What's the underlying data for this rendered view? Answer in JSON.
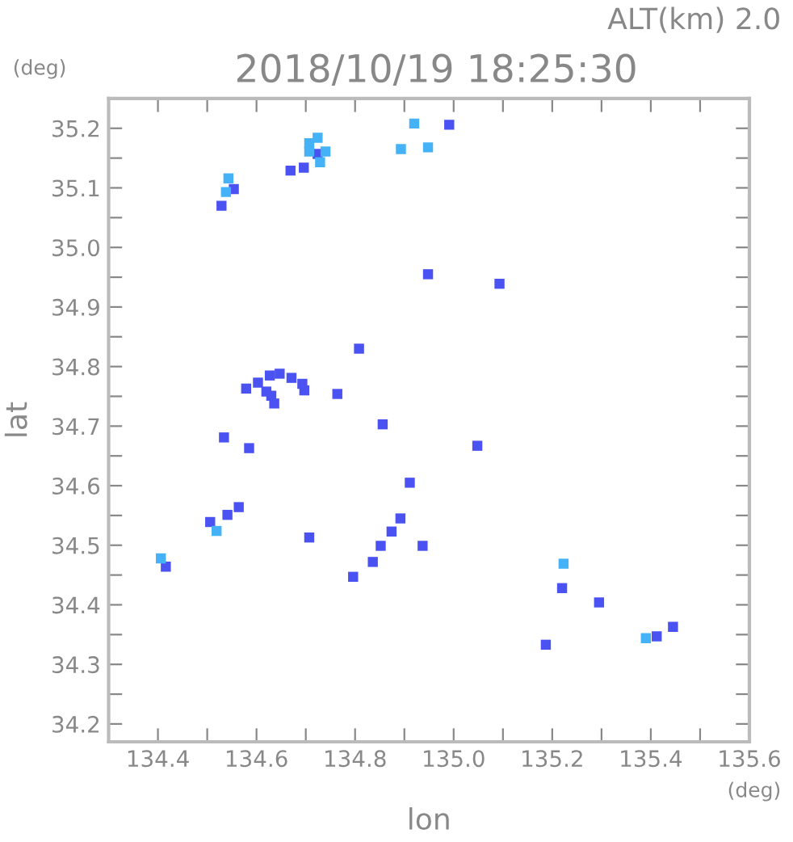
{
  "chart_data": {
    "type": "scatter",
    "title": "2018/10/19 18:25:30",
    "subtitle": "ALT(km) 2.0",
    "xlabel": "lon",
    "ylabel": "lat",
    "annotations": [
      "(deg)",
      "(deg)"
    ],
    "marker": "square",
    "grid": false,
    "legend": false,
    "xlim": [
      134.3,
      135.6
    ],
    "ylim": [
      34.17,
      35.25
    ],
    "xticks": [
      134.4,
      {
        "value": 134.5,
        "label": null
      },
      134.6,
      {
        "value": 134.7,
        "label": null
      },
      134.8,
      {
        "value": 134.9,
        "label": null
      },
      {
        "value": 135.0,
        "label": "135.0"
      },
      {
        "value": 135.1,
        "label": null
      },
      135.2,
      {
        "value": 135.3,
        "label": null
      },
      135.4,
      {
        "value": 135.5,
        "label": null
      },
      135.6
    ],
    "yticks": [
      34.2,
      {
        "value": 34.25,
        "label": null
      },
      34.3,
      {
        "value": 34.35,
        "label": null
      },
      34.4,
      {
        "value": 34.45,
        "label": null
      },
      34.5,
      {
        "value": 34.55,
        "label": null
      },
      34.6,
      {
        "value": 34.65,
        "label": null
      },
      34.7,
      {
        "value": 34.75,
        "label": null
      },
      34.8,
      {
        "value": 34.85,
        "label": null
      },
      34.9,
      {
        "value": 34.95,
        "label": null
      },
      {
        "value": 35.0,
        "label": "35.0"
      },
      {
        "value": 35.05,
        "label": null
      },
      35.1,
      {
        "value": 35.15,
        "label": null
      },
      35.2
    ],
    "series": [
      {
        "color": "#4b52f2",
        "x": [
          134.529,
          134.554,
          134.669,
          134.696,
          134.724,
          134.991,
          134.948,
          135.093,
          134.808,
          134.579,
          134.603,
          134.627,
          134.647,
          134.671,
          134.693,
          134.697,
          134.62,
          134.63,
          134.764,
          134.636,
          134.534,
          134.585,
          134.416,
          134.506,
          134.564,
          134.541,
          134.707,
          134.856,
          135.048,
          134.911,
          134.892,
          134.874,
          134.852,
          134.836,
          134.796,
          134.937,
          135.22,
          135.295,
          135.187,
          135.412,
          135.445
        ],
        "values": [
          35.07,
          35.098,
          35.129,
          35.134,
          35.157,
          35.206,
          34.955,
          34.939,
          34.83,
          34.763,
          34.773,
          34.785,
          34.788,
          34.781,
          34.771,
          34.76,
          34.758,
          34.751,
          34.754,
          34.738,
          34.681,
          34.663,
          34.464,
          34.539,
          34.564,
          34.551,
          34.513,
          34.703,
          34.667,
          34.605,
          34.545,
          34.523,
          34.499,
          34.472,
          34.447,
          34.499,
          34.428,
          34.404,
          34.333,
          34.347,
          34.363
        ]
      },
      {
        "color": "#45b2f7",
        "x": [
          134.538,
          134.543,
          134.707,
          134.724,
          134.707,
          134.74,
          134.729,
          134.92,
          134.893,
          134.948,
          135.223,
          135.39,
          134.406,
          134.519
        ],
        "values": [
          35.093,
          35.116,
          35.175,
          35.184,
          35.161,
          35.161,
          35.143,
          35.208,
          35.165,
          35.168,
          34.469,
          34.344,
          34.478,
          34.524
        ]
      }
    ]
  }
}
